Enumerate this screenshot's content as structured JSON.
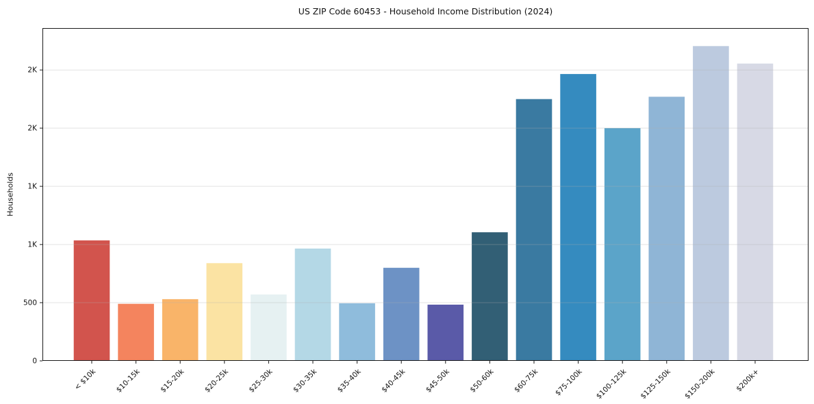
{
  "chart_data": {
    "type": "bar",
    "title": "US ZIP Code 60453 - Household Income Distribution (2024)",
    "ylabel": "Households",
    "xlabel": "",
    "categories": [
      "< $10k",
      "$10-15k",
      "$15-20k",
      "$20-25k",
      "$25-30k",
      "$30-35k",
      "$35-40k",
      "$40-45k",
      "$45-50k",
      "$50-60k",
      "$60-75k",
      "$75-100k",
      "$100-125k",
      "$125-150k",
      "$150-200k",
      "$200k+"
    ],
    "values": [
      1035,
      490,
      530,
      840,
      570,
      965,
      495,
      800,
      483,
      1105,
      2250,
      2465,
      2000,
      2270,
      2705,
      2555
    ],
    "bar_colors": [
      "#d2544d",
      "#f4845e",
      "#f9b469",
      "#fbe3a3",
      "#e6f1f2",
      "#b4d8e6",
      "#8fbcdc",
      "#6d92c5",
      "#5a5aa8",
      "#325f75",
      "#3a7aa1",
      "#358bbf",
      "#5ba4c9",
      "#8fb5d6",
      "#bccadf",
      "#d7d9e5"
    ],
    "ylim": [
      0,
      2860
    ],
    "yticks": {
      "values": [
        0,
        500,
        1000,
        1500,
        2000,
        2500
      ],
      "labels": [
        "0",
        "500",
        "1K",
        "1K",
        "2K",
        "2K"
      ]
    },
    "grid": "horizontal",
    "legend": "none",
    "colors": {
      "grid": "#b0b0b0",
      "axis": "#1a1a1a",
      "text": "#111111",
      "background": "#ffffff"
    }
  }
}
